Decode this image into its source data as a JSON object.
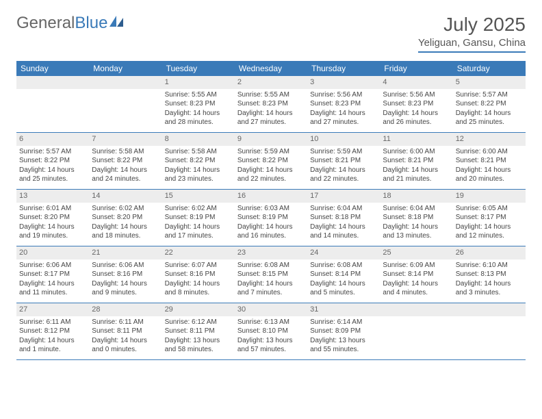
{
  "brand": {
    "part1": "General",
    "part2": "Blue"
  },
  "title": "July 2025",
  "location": "Yeliguan, Gansu, China",
  "colors": {
    "header_bg": "#3a7ab8",
    "header_text": "#ffffff",
    "daynum_bg": "#ededed",
    "text": "#444444",
    "rule": "#3a7ab8"
  },
  "typography": {
    "title_fontsize": 28,
    "location_fontsize": 15,
    "dayheader_fontsize": 12,
    "daynum_fontsize": 11,
    "body_fontsize": 10
  },
  "day_names": [
    "Sunday",
    "Monday",
    "Tuesday",
    "Wednesday",
    "Thursday",
    "Friday",
    "Saturday"
  ],
  "weeks": [
    [
      {
        "n": "",
        "sunrise": "",
        "sunset": "",
        "daylight": ""
      },
      {
        "n": "",
        "sunrise": "",
        "sunset": "",
        "daylight": ""
      },
      {
        "n": "1",
        "sunrise": "Sunrise: 5:55 AM",
        "sunset": "Sunset: 8:23 PM",
        "daylight": "Daylight: 14 hours and 28 minutes."
      },
      {
        "n": "2",
        "sunrise": "Sunrise: 5:55 AM",
        "sunset": "Sunset: 8:23 PM",
        "daylight": "Daylight: 14 hours and 27 minutes."
      },
      {
        "n": "3",
        "sunrise": "Sunrise: 5:56 AM",
        "sunset": "Sunset: 8:23 PM",
        "daylight": "Daylight: 14 hours and 27 minutes."
      },
      {
        "n": "4",
        "sunrise": "Sunrise: 5:56 AM",
        "sunset": "Sunset: 8:23 PM",
        "daylight": "Daylight: 14 hours and 26 minutes."
      },
      {
        "n": "5",
        "sunrise": "Sunrise: 5:57 AM",
        "sunset": "Sunset: 8:22 PM",
        "daylight": "Daylight: 14 hours and 25 minutes."
      }
    ],
    [
      {
        "n": "6",
        "sunrise": "Sunrise: 5:57 AM",
        "sunset": "Sunset: 8:22 PM",
        "daylight": "Daylight: 14 hours and 25 minutes."
      },
      {
        "n": "7",
        "sunrise": "Sunrise: 5:58 AM",
        "sunset": "Sunset: 8:22 PM",
        "daylight": "Daylight: 14 hours and 24 minutes."
      },
      {
        "n": "8",
        "sunrise": "Sunrise: 5:58 AM",
        "sunset": "Sunset: 8:22 PM",
        "daylight": "Daylight: 14 hours and 23 minutes."
      },
      {
        "n": "9",
        "sunrise": "Sunrise: 5:59 AM",
        "sunset": "Sunset: 8:22 PM",
        "daylight": "Daylight: 14 hours and 22 minutes."
      },
      {
        "n": "10",
        "sunrise": "Sunrise: 5:59 AM",
        "sunset": "Sunset: 8:21 PM",
        "daylight": "Daylight: 14 hours and 22 minutes."
      },
      {
        "n": "11",
        "sunrise": "Sunrise: 6:00 AM",
        "sunset": "Sunset: 8:21 PM",
        "daylight": "Daylight: 14 hours and 21 minutes."
      },
      {
        "n": "12",
        "sunrise": "Sunrise: 6:00 AM",
        "sunset": "Sunset: 8:21 PM",
        "daylight": "Daylight: 14 hours and 20 minutes."
      }
    ],
    [
      {
        "n": "13",
        "sunrise": "Sunrise: 6:01 AM",
        "sunset": "Sunset: 8:20 PM",
        "daylight": "Daylight: 14 hours and 19 minutes."
      },
      {
        "n": "14",
        "sunrise": "Sunrise: 6:02 AM",
        "sunset": "Sunset: 8:20 PM",
        "daylight": "Daylight: 14 hours and 18 minutes."
      },
      {
        "n": "15",
        "sunrise": "Sunrise: 6:02 AM",
        "sunset": "Sunset: 8:19 PM",
        "daylight": "Daylight: 14 hours and 17 minutes."
      },
      {
        "n": "16",
        "sunrise": "Sunrise: 6:03 AM",
        "sunset": "Sunset: 8:19 PM",
        "daylight": "Daylight: 14 hours and 16 minutes."
      },
      {
        "n": "17",
        "sunrise": "Sunrise: 6:04 AM",
        "sunset": "Sunset: 8:18 PM",
        "daylight": "Daylight: 14 hours and 14 minutes."
      },
      {
        "n": "18",
        "sunrise": "Sunrise: 6:04 AM",
        "sunset": "Sunset: 8:18 PM",
        "daylight": "Daylight: 14 hours and 13 minutes."
      },
      {
        "n": "19",
        "sunrise": "Sunrise: 6:05 AM",
        "sunset": "Sunset: 8:17 PM",
        "daylight": "Daylight: 14 hours and 12 minutes."
      }
    ],
    [
      {
        "n": "20",
        "sunrise": "Sunrise: 6:06 AM",
        "sunset": "Sunset: 8:17 PM",
        "daylight": "Daylight: 14 hours and 11 minutes."
      },
      {
        "n": "21",
        "sunrise": "Sunrise: 6:06 AM",
        "sunset": "Sunset: 8:16 PM",
        "daylight": "Daylight: 14 hours and 9 minutes."
      },
      {
        "n": "22",
        "sunrise": "Sunrise: 6:07 AM",
        "sunset": "Sunset: 8:16 PM",
        "daylight": "Daylight: 14 hours and 8 minutes."
      },
      {
        "n": "23",
        "sunrise": "Sunrise: 6:08 AM",
        "sunset": "Sunset: 8:15 PM",
        "daylight": "Daylight: 14 hours and 7 minutes."
      },
      {
        "n": "24",
        "sunrise": "Sunrise: 6:08 AM",
        "sunset": "Sunset: 8:14 PM",
        "daylight": "Daylight: 14 hours and 5 minutes."
      },
      {
        "n": "25",
        "sunrise": "Sunrise: 6:09 AM",
        "sunset": "Sunset: 8:14 PM",
        "daylight": "Daylight: 14 hours and 4 minutes."
      },
      {
        "n": "26",
        "sunrise": "Sunrise: 6:10 AM",
        "sunset": "Sunset: 8:13 PM",
        "daylight": "Daylight: 14 hours and 3 minutes."
      }
    ],
    [
      {
        "n": "27",
        "sunrise": "Sunrise: 6:11 AM",
        "sunset": "Sunset: 8:12 PM",
        "daylight": "Daylight: 14 hours and 1 minute."
      },
      {
        "n": "28",
        "sunrise": "Sunrise: 6:11 AM",
        "sunset": "Sunset: 8:11 PM",
        "daylight": "Daylight: 14 hours and 0 minutes."
      },
      {
        "n": "29",
        "sunrise": "Sunrise: 6:12 AM",
        "sunset": "Sunset: 8:11 PM",
        "daylight": "Daylight: 13 hours and 58 minutes."
      },
      {
        "n": "30",
        "sunrise": "Sunrise: 6:13 AM",
        "sunset": "Sunset: 8:10 PM",
        "daylight": "Daylight: 13 hours and 57 minutes."
      },
      {
        "n": "31",
        "sunrise": "Sunrise: 6:14 AM",
        "sunset": "Sunset: 8:09 PM",
        "daylight": "Daylight: 13 hours and 55 minutes."
      },
      {
        "n": "",
        "sunrise": "",
        "sunset": "",
        "daylight": ""
      },
      {
        "n": "",
        "sunrise": "",
        "sunset": "",
        "daylight": ""
      }
    ]
  ]
}
